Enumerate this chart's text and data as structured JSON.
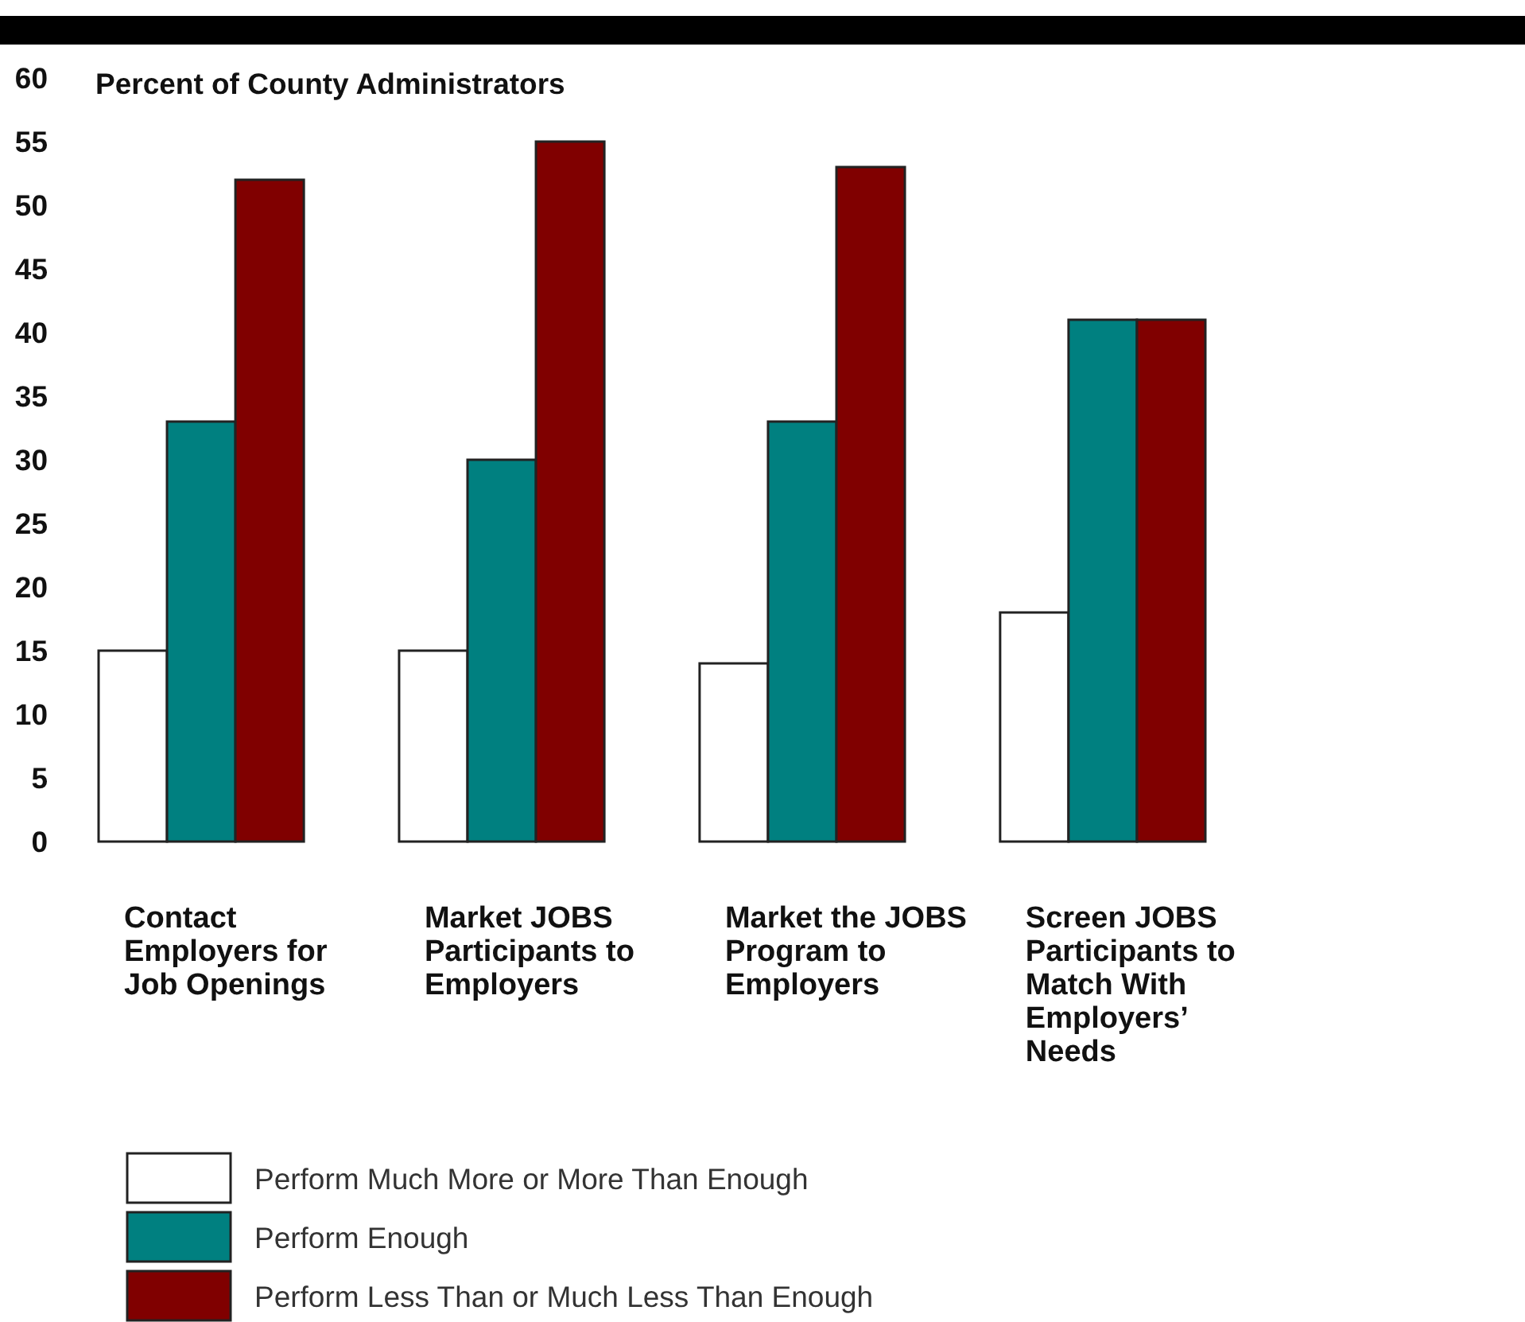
{
  "chart_data": {
    "type": "bar",
    "ylabel": "Percent of County Administrators",
    "categories": [
      "Contact Employers for Job Openings",
      "Market JOBS Participants to Employers",
      "Market the JOBS Program to Employers",
      "Screen JOBS Participants to Match With Employers’ Needs"
    ],
    "series": [
      {
        "name": "Perform Much More or More Than Enough",
        "color": "#ffffff",
        "values": [
          15,
          15,
          14,
          18
        ]
      },
      {
        "name": "Perform Enough",
        "color": "#008080",
        "values": [
          33,
          30,
          33,
          41
        ]
      },
      {
        "name": "Perform Less Than or Much Less Than Enough",
        "color": "#800000",
        "values": [
          52,
          55,
          53,
          41
        ]
      }
    ],
    "ylim": [
      0,
      60
    ],
    "yticks": [
      0,
      5,
      10,
      15,
      20,
      25,
      30,
      35,
      40,
      45,
      50,
      55,
      60
    ],
    "legend": "bottom"
  }
}
